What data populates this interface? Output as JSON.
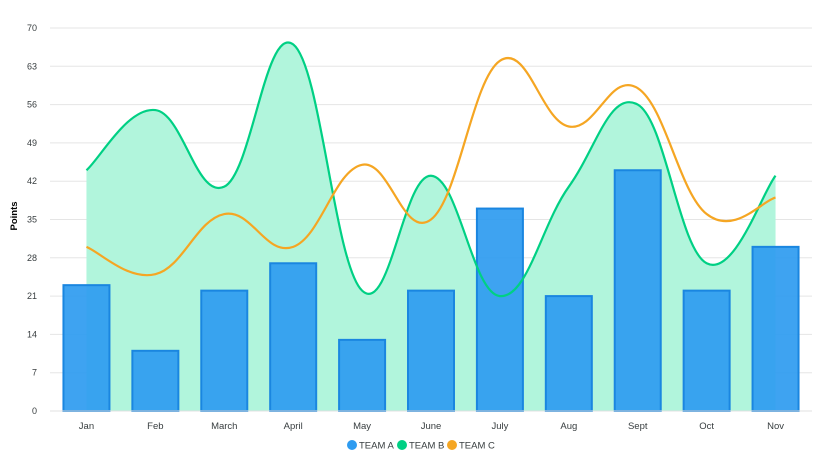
{
  "chart_data": {
    "type": "bar",
    "title": "",
    "xlabel": "",
    "ylabel": "Points",
    "ylim": [
      0,
      70
    ],
    "yticks": [
      0,
      7,
      14,
      21,
      28,
      35,
      42,
      49,
      56,
      63,
      70
    ],
    "categories": [
      "Jan",
      "Feb",
      "March",
      "April",
      "May",
      "June",
      "July",
      "Aug",
      "Sept",
      "Oct",
      "Nov"
    ],
    "grid": true,
    "legend_position": "bottom",
    "series": [
      {
        "name": "TEAM A",
        "type": "bar",
        "color": "#2E9BF0",
        "values": [
          23,
          11,
          22,
          27,
          13,
          22,
          37,
          21,
          44,
          22,
          30
        ]
      },
      {
        "name": "TEAM B",
        "type": "area",
        "color": "#00D084",
        "values": [
          44,
          55,
          41,
          67,
          22,
          43,
          21,
          41,
          56,
          27,
          43
        ]
      },
      {
        "name": "TEAM C",
        "type": "line",
        "color": "#F5A623",
        "values": [
          30,
          25,
          36,
          30,
          45,
          35,
          64,
          52,
          59,
          36,
          39
        ]
      }
    ]
  }
}
